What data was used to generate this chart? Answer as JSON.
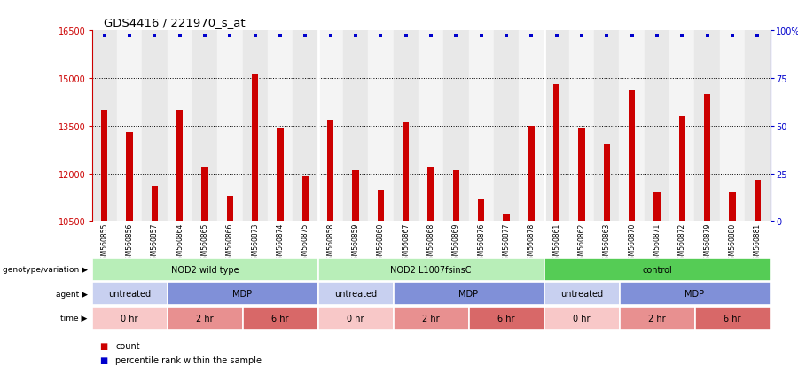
{
  "title": "GDS4416 / 221970_s_at",
  "samples": [
    "GSM560855",
    "GSM560856",
    "GSM560857",
    "GSM560864",
    "GSM560865",
    "GSM560866",
    "GSM560873",
    "GSM560874",
    "GSM560875",
    "GSM560858",
    "GSM560859",
    "GSM560860",
    "GSM560867",
    "GSM560868",
    "GSM560869",
    "GSM560876",
    "GSM560877",
    "GSM560878",
    "GSM560861",
    "GSM560862",
    "GSM560863",
    "GSM560870",
    "GSM560871",
    "GSM560872",
    "GSM560879",
    "GSM560880",
    "GSM560881"
  ],
  "counts": [
    14000,
    13300,
    11600,
    14000,
    12200,
    11300,
    15100,
    13400,
    11900,
    13700,
    12100,
    11500,
    13600,
    12200,
    12100,
    11200,
    10700,
    13500,
    14800,
    13400,
    12900,
    14600,
    11400,
    13800,
    14500,
    11400,
    11800
  ],
  "ylim_left": [
    10500,
    16500
  ],
  "ylim_right": [
    0,
    100
  ],
  "yticks_left": [
    10500,
    12000,
    13500,
    15000,
    16500
  ],
  "yticks_right": [
    0,
    25,
    50,
    75,
    100
  ],
  "bar_color": "#cc0000",
  "dot_color": "#0000cc",
  "chart_bg": "#ffffff",
  "col_bg_odd": "#e8e8e8",
  "col_bg_even": "#f4f4f4",
  "grid_lines": [
    12000,
    13500,
    15000
  ],
  "genotype_groups": [
    {
      "label": "NOD2 wild type",
      "start": 0,
      "end": 8,
      "color": "#b8eeb8"
    },
    {
      "label": "NOD2 L1007fsinsC",
      "start": 9,
      "end": 17,
      "color": "#b8eeb8"
    },
    {
      "label": "control",
      "start": 18,
      "end": 26,
      "color": "#55cc55"
    }
  ],
  "agent_groups": [
    {
      "label": "untreated",
      "start": 0,
      "end": 2,
      "color": "#c8d0f0"
    },
    {
      "label": "MDP",
      "start": 3,
      "end": 8,
      "color": "#8090d8"
    },
    {
      "label": "untreated",
      "start": 9,
      "end": 11,
      "color": "#c8d0f0"
    },
    {
      "label": "MDP",
      "start": 12,
      "end": 17,
      "color": "#8090d8"
    },
    {
      "label": "untreated",
      "start": 18,
      "end": 20,
      "color": "#c8d0f0"
    },
    {
      "label": "MDP",
      "start": 21,
      "end": 26,
      "color": "#8090d8"
    }
  ],
  "time_groups": [
    {
      "label": "0 hr",
      "start": 0,
      "end": 2,
      "color": "#f8c8c8"
    },
    {
      "label": "2 hr",
      "start": 3,
      "end": 5,
      "color": "#e89090"
    },
    {
      "label": "6 hr",
      "start": 6,
      "end": 8,
      "color": "#d86868"
    },
    {
      "label": "0 hr",
      "start": 9,
      "end": 11,
      "color": "#f8c8c8"
    },
    {
      "label": "2 hr",
      "start": 12,
      "end": 14,
      "color": "#e89090"
    },
    {
      "label": "6 hr",
      "start": 15,
      "end": 17,
      "color": "#d86868"
    },
    {
      "label": "0 hr",
      "start": 18,
      "end": 20,
      "color": "#f8c8c8"
    },
    {
      "label": "2 hr",
      "start": 21,
      "end": 23,
      "color": "#e89090"
    },
    {
      "label": "6 hr",
      "start": 24,
      "end": 26,
      "color": "#d86868"
    }
  ],
  "row_labels": [
    "genotype/variation",
    "agent",
    "time"
  ],
  "legend_items": [
    {
      "label": "count",
      "color": "#cc0000"
    },
    {
      "label": "percentile rank within the sample",
      "color": "#0000cc"
    }
  ]
}
